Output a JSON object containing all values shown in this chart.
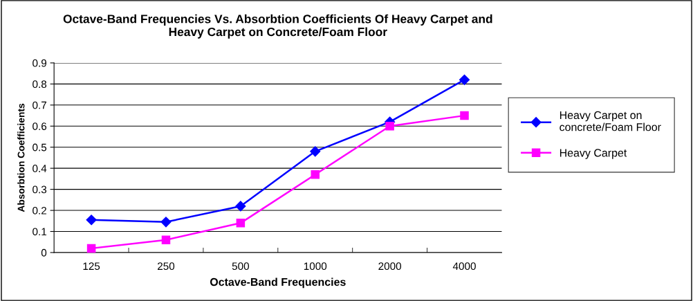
{
  "chart_data": {
    "type": "line",
    "title": "Octave-Band Frequencies Vs. Absorbtion Coefficients Of Heavy Carpet and\nHeavy Carpet on Concrete/Foam Floor",
    "xlabel": "Octave-Band Frequencies",
    "ylabel": "Absorbtion Coefficients",
    "categories": [
      "125",
      "250",
      "500",
      "1000",
      "2000",
      "4000"
    ],
    "series": [
      {
        "name": "Heavy Carpet on concrete/Foam Floor",
        "color": "#0000ff",
        "marker": "diamond",
        "values": [
          0.155,
          0.145,
          0.22,
          0.48,
          0.62,
          0.82
        ]
      },
      {
        "name": "Heavy Carpet",
        "color": "#ff00ff",
        "marker": "square",
        "values": [
          0.02,
          0.06,
          0.14,
          0.37,
          0.6,
          0.65
        ]
      }
    ],
    "ylim": [
      0,
      0.9
    ],
    "yticks": [
      0,
      0.1,
      0.2,
      0.3,
      0.4,
      0.5,
      0.6,
      0.7,
      0.8,
      0.9
    ],
    "grid": "y",
    "legend": "right",
    "line_style": "solid"
  }
}
